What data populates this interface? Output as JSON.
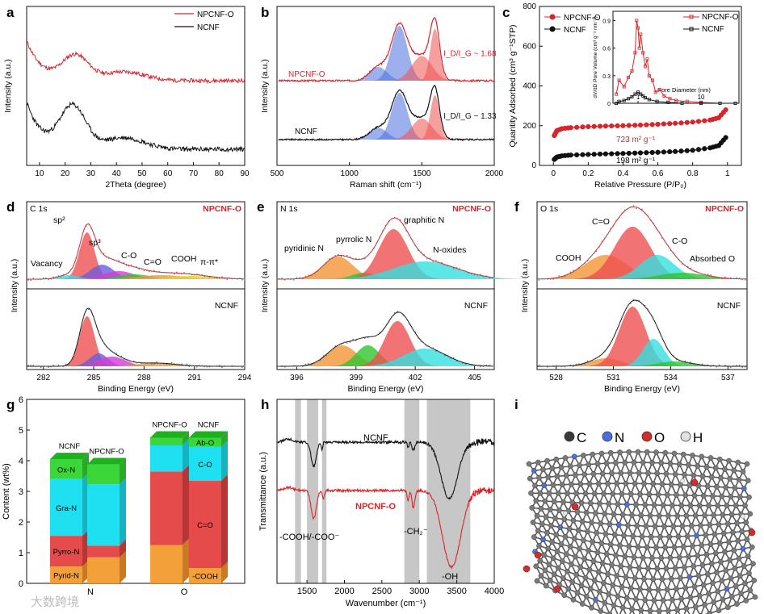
{
  "colors": {
    "red": "#d6262b",
    "black": "#111111",
    "blue_peak": "#4a6fe0",
    "red_peak": "#ee5050",
    "orange": "#f29536",
    "green": "#2ec52e",
    "cyan": "#36dede",
    "violet": "#6e5bdb",
    "magenta": "#d23cd8",
    "yellow": "#e4d230",
    "lime": "#9be43c",
    "gray_band": "#b4b4b4",
    "bar_orange": "#f4a03a",
    "bar_red": "#e54b4b",
    "bar_cyan": "#1fe0f0",
    "bar_green": "#3ad63a"
  },
  "watermark": "大数跨境",
  "chart_data": [
    {
      "id": "a",
      "type": "line",
      "panel_label": "a",
      "xlabel": "2Theta (degree)",
      "ylabel": "Intensity (a.u.)",
      "xlim": [
        5,
        90
      ],
      "xticks": [
        10,
        20,
        30,
        40,
        50,
        60,
        70,
        80,
        90
      ],
      "legend": [
        "NPCNF-O",
        "NCNF"
      ],
      "series": [
        {
          "name": "NPCNF-O",
          "peaks": [
            [
              24,
              0.55
            ],
            [
              43,
              0.2
            ]
          ]
        },
        {
          "name": "NCNF",
          "peaks": [
            [
              23,
              0.8
            ],
            [
              43,
              0.22
            ]
          ]
        }
      ]
    },
    {
      "id": "b",
      "type": "line",
      "panel_label": "b",
      "xlabel": "Raman shift (cm⁻¹)",
      "ylabel": "Intensity (a.u.)",
      "xlim": [
        500,
        2000
      ],
      "xticks": [
        500,
        1000,
        1500,
        2000
      ],
      "series": [
        {
          "name": "NPCNF-O",
          "id_ig": "I_D/I_G ~ 1.68",
          "D_band": 1345,
          "G_band": 1590
        },
        {
          "name": "NCNF",
          "id_ig": "I_D/I_G ~ 1.33",
          "D_band": 1345,
          "G_band": 1590
        }
      ]
    },
    {
      "id": "c",
      "type": "line",
      "panel_label": "c",
      "xlabel": "Relative Pressure (P/P₀)",
      "ylabel": "Quantity Adsorbed (cm³ g⁻¹STP)",
      "xlim": [
        0,
        1.0
      ],
      "ylim": [
        0,
        800
      ],
      "xticks": [
        0.0,
        0.2,
        0.4,
        0.6,
        0.8,
        1.0
      ],
      "yticks": [
        0,
        200,
        400,
        600,
        800
      ],
      "legend": [
        "NPCNF-O",
        "NCNF"
      ],
      "annotations": [
        "723 m² g⁻¹",
        "198 m² g⁻¹"
      ],
      "series": [
        {
          "name": "NPCNF-O",
          "x": [
            0.005,
            0.02,
            0.05,
            0.1,
            0.2,
            0.3,
            0.4,
            0.5,
            0.6,
            0.7,
            0.8,
            0.9,
            0.95,
            0.99
          ],
          "y": [
            150,
            175,
            185,
            190,
            195,
            198,
            200,
            203,
            207,
            212,
            218,
            228,
            240,
            280
          ]
        },
        {
          "name": "NCNF",
          "x": [
            0.005,
            0.02,
            0.05,
            0.1,
            0.2,
            0.3,
            0.4,
            0.5,
            0.6,
            0.7,
            0.8,
            0.9,
            0.95,
            0.99
          ],
          "y": [
            30,
            42,
            48,
            52,
            55,
            58,
            60,
            63,
            66,
            70,
            76,
            88,
            100,
            140
          ]
        }
      ],
      "inset": {
        "xlabel": "Pore Diameter (nm)",
        "ylabel": "dV/dD Pore Volume (cm³ g⁻¹ nm⁻¹)",
        "xscale": "log",
        "xlim": [
          0.4,
          40
        ],
        "ylim": [
          0,
          1.0
        ],
        "yticks": [
          0.0,
          0.3,
          0.6,
          0.9
        ],
        "xtick_labels": [
          "1",
          "10"
        ],
        "legend": [
          "NPCNF-O",
          "NCNF"
        ],
        "series": [
          {
            "name": "NPCNF-O",
            "x": [
              0.45,
              0.5,
              0.6,
              0.7,
              0.8,
              0.9,
              0.95,
              1.0,
              1.05,
              1.1,
              1.2,
              1.3,
              1.4,
              1.5,
              1.7,
              1.9,
              2.2,
              2.6,
              3.2,
              4,
              6,
              10,
              20,
              35
            ],
            "y": [
              0.1,
              0.25,
              0.18,
              0.28,
              0.35,
              0.55,
              0.9,
              0.82,
              0.6,
              0.75,
              0.55,
              0.4,
              0.48,
              0.3,
              0.25,
              0.12,
              0.15,
              0.08,
              0.05,
              0.03,
              0.02,
              0.01,
              0.0,
              0.0
            ]
          },
          {
            "name": "NCNF",
            "x": [
              0.45,
              0.5,
              0.6,
              0.7,
              0.8,
              0.9,
              1.0,
              1.1,
              1.2,
              1.3,
              1.5,
              2,
              3,
              5,
              10,
              20,
              35
            ],
            "y": [
              0.0,
              0.02,
              0.03,
              0.05,
              0.07,
              0.1,
              0.12,
              0.1,
              0.08,
              0.06,
              0.04,
              0.02,
              0.01,
              0.0,
              0.0,
              0.0,
              0.0
            ]
          }
        ]
      }
    },
    {
      "id": "d",
      "type": "line",
      "panel_label": "d",
      "title": "C 1s",
      "xlabel": "Binding Energy (eV)",
      "ylabel": "Intensity (a.u.)",
      "xlim": [
        281,
        294
      ],
      "xticks": [
        282,
        285,
        288,
        291,
        294
      ],
      "sample_labels": [
        "NPCNF-O",
        "NCNF"
      ],
      "components": [
        "Vacancy",
        "sp²",
        "sp³",
        "C-O",
        "C=O",
        "COOH",
        "π-π*"
      ]
    },
    {
      "id": "e",
      "type": "line",
      "panel_label": "e",
      "title": "N 1s",
      "xlabel": "Binding Energy (eV)",
      "ylabel": "Intensity (a.u.)",
      "xlim": [
        395,
        406
      ],
      "xticks": [
        396,
        399,
        402,
        405
      ],
      "sample_labels": [
        "NPCNF-O",
        "NCNF"
      ],
      "components": [
        "pyridinic N",
        "pyrrolic N",
        "graphitic N",
        "N-oxides"
      ]
    },
    {
      "id": "f",
      "type": "line",
      "panel_label": "f",
      "title": "O 1s",
      "xlabel": "Binding Energy (eV)",
      "ylabel": "Intensity (a.u.)",
      "xlim": [
        527,
        538
      ],
      "xticks": [
        528,
        531,
        534,
        537
      ],
      "sample_labels": [
        "NPCNF-O",
        "NCNF"
      ],
      "components": [
        "COOH",
        "C=O",
        "C-O",
        "Absorbed O"
      ]
    },
    {
      "id": "g",
      "type": "bar",
      "stacked": true,
      "panel_label": "g",
      "ylabel": "Content (wt%)",
      "ylim": [
        0,
        6
      ],
      "yticks": [
        0,
        1,
        2,
        3,
        4,
        5,
        6
      ],
      "categories": [
        "N",
        "O"
      ],
      "bars": [
        {
          "group": "N",
          "sample": "NCNF",
          "segments": [
            [
              "Pyrid-N",
              0.55
            ],
            [
              "Pyrro-N",
              1.0
            ],
            [
              "Gra-N",
              1.85
            ],
            [
              "Ox-N",
              0.65
            ]
          ]
        },
        {
          "group": "N",
          "sample": "NPCNF-O",
          "segments": [
            [
              "",
              0.85
            ],
            [
              "",
              0.38
            ],
            [
              "",
              2.0
            ],
            [
              "",
              0.65
            ]
          ]
        },
        {
          "group": "O",
          "sample": "NPCNF-O",
          "segments": [
            [
              "",
              1.25
            ],
            [
              "",
              2.4
            ],
            [
              "",
              0.85
            ],
            [
              "",
              0.25
            ]
          ]
        },
        {
          "group": "O",
          "sample": "NCNF",
          "segments": [
            [
              "-COOH",
              0.5
            ],
            [
              "C=O",
              2.85
            ],
            [
              "C-O",
              1.1
            ],
            [
              "Ab-O",
              0.3
            ]
          ]
        }
      ]
    },
    {
      "id": "h",
      "type": "line",
      "panel_label": "h",
      "xlabel": "Wavenumber (cm⁻¹)",
      "ylabel": "Transmittance (a.u.)",
      "xlim": [
        1100,
        4000
      ],
      "xticks": [
        1500,
        2000,
        2500,
        3000,
        3500,
        4000
      ],
      "series_labels": [
        "NCNF",
        "NPCNF-O"
      ],
      "annotations": [
        "-COOH/-COO⁻",
        "-CH₂⁻",
        "-OH"
      ],
      "highlight_bands": [
        [
          1340,
          1420
        ],
        [
          1500,
          1650
        ],
        [
          1700,
          1760
        ],
        [
          2800,
          3000
        ],
        [
          3100,
          3680
        ]
      ]
    },
    {
      "id": "i",
      "type": "diagram",
      "panel_label": "i",
      "legend": [
        {
          "symbol": "C",
          "color": "#3a3a3a"
        },
        {
          "symbol": "N",
          "color": "#4a6fe0"
        },
        {
          "symbol": "O",
          "color": "#d0302d"
        },
        {
          "symbol": "H",
          "color": "#e0e0e0"
        }
      ]
    }
  ]
}
